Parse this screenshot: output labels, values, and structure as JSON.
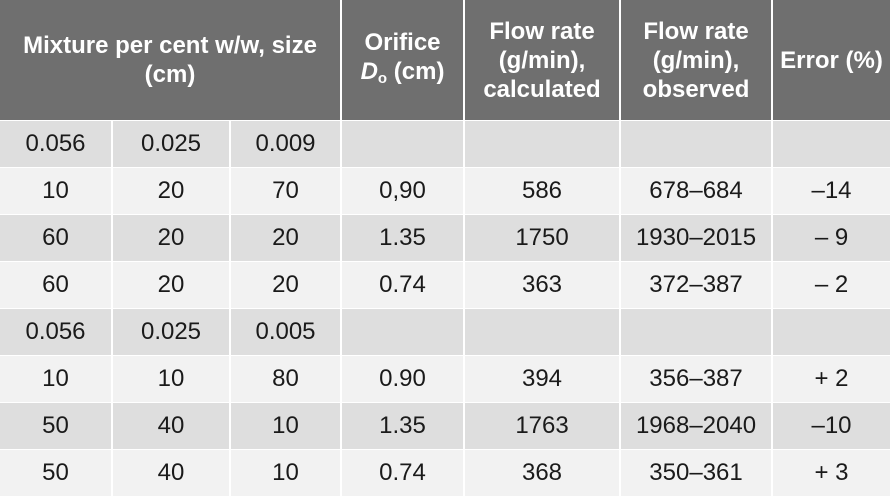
{
  "header": {
    "mixture": "Mixture per cent w/w, size (cm)",
    "orifice_line1": "Orifice",
    "orifice_symbol": "D",
    "orifice_subscript": "o",
    "orifice_unit": " (cm)",
    "calc": "Flow rate (g/min), calculated",
    "obs": "Flow rate (g/min), observed",
    "error": "Error (%)"
  },
  "rows": [
    [
      "0.056",
      "0.025",
      "0.009",
      "",
      "",
      "",
      ""
    ],
    [
      "10",
      "20",
      "70",
      "0,90",
      "586",
      "678–684",
      "–14"
    ],
    [
      "60",
      "20",
      "20",
      "1.35",
      "1750",
      "1930–2015",
      "– 9"
    ],
    [
      "60",
      "20",
      "20",
      "0.74",
      "363",
      "372–387",
      "– 2"
    ],
    [
      "0.056",
      "0.025",
      "0.005",
      "",
      "",
      "",
      ""
    ],
    [
      "10",
      "10",
      "80",
      "0.90",
      "394",
      "356–387",
      "+ 2"
    ],
    [
      "50",
      "40",
      "10",
      "1.35",
      "1763",
      "1968–2040",
      "–10"
    ],
    [
      "50",
      "40",
      "10",
      "0.74",
      "368",
      "350–361",
      "+ 3"
    ]
  ]
}
